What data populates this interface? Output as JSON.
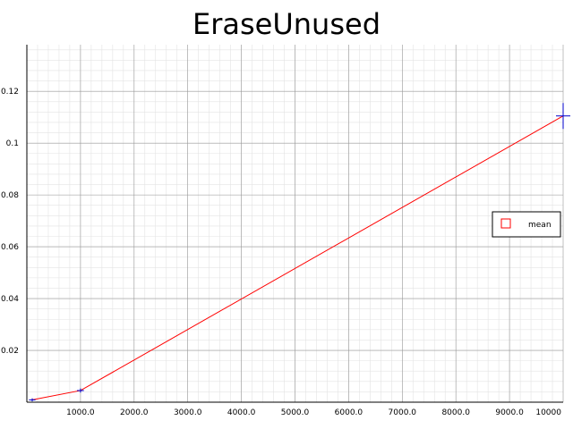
{
  "chart_data": {
    "type": "line",
    "title": "EraseUnused",
    "xlabel": "",
    "ylabel": "",
    "xlim": [
      0,
      10000
    ],
    "ylim": [
      0,
      0.138
    ],
    "grid": true,
    "legend_position": "right",
    "x_ticks": [
      1000,
      2000,
      3000,
      4000,
      5000,
      6000,
      7000,
      8000,
      9000,
      10000
    ],
    "x_tick_labels": [
      "1000.0",
      "2000.0",
      "3000.0",
      "4000.0",
      "5000.0",
      "6000.0",
      "7000.0",
      "8000.0",
      "9000.0",
      "10000"
    ],
    "y_ticks": [
      0.02,
      0.04,
      0.06,
      0.08,
      0.1,
      0.12
    ],
    "y_tick_labels": [
      "0.02",
      "0.04",
      "0.06",
      "0.08",
      "0.1",
      "0.12"
    ],
    "series": [
      {
        "name": "mean",
        "color": "#ff0000",
        "x": [
          100,
          1000,
          10000
        ],
        "values": [
          0.0009,
          0.0045,
          0.1105
        ],
        "error_bar_color": "#0000cc",
        "errors": [
          0.0006,
          0.0008,
          0.005
        ]
      }
    ]
  }
}
